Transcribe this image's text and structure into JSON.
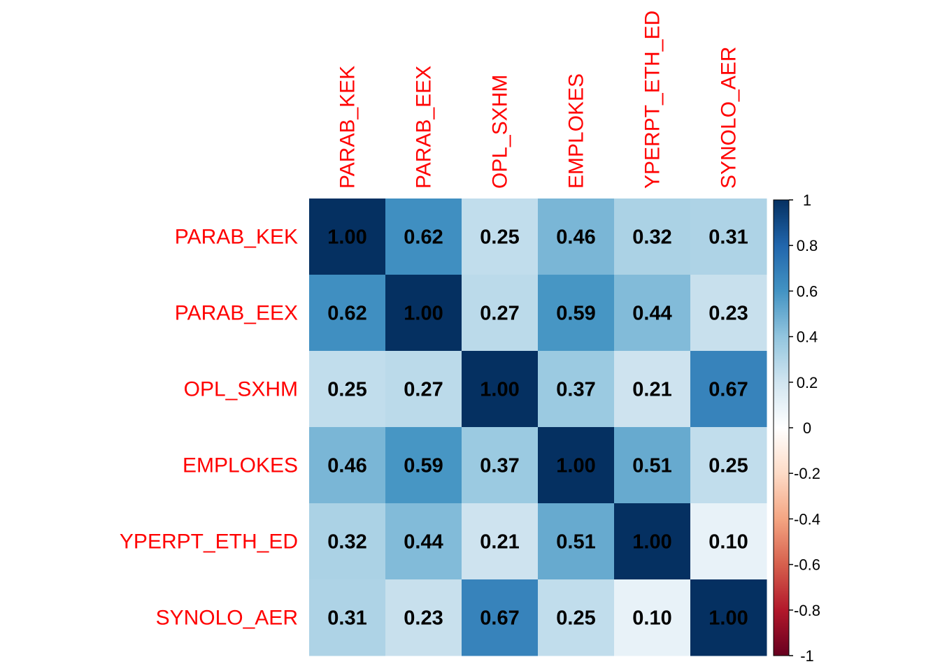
{
  "chart_data": {
    "type": "heatmap",
    "title": "",
    "variables": [
      "PARAB_KEK",
      "PARAB_EEX",
      "OPL_SXHM",
      "EMPLOKES",
      "YPERPT_ETH_ED",
      "SYNOLO_AER"
    ],
    "row_labels": [
      "PARAB_KEK",
      "PARAB_EEX",
      "OPL_SXHM",
      "EMPLOKES",
      "YPERPT_ETH_ED",
      "SYNOLO_AER"
    ],
    "col_labels": [
      "PARAB_KEK",
      "PARAB_EEX",
      "OPL_SXHM",
      "EMPLOKES",
      "YPERPT_ETH_ED",
      "SYNOLO_AER"
    ],
    "values": [
      [
        1.0,
        0.62,
        0.25,
        0.46,
        0.32,
        0.31
      ],
      [
        0.62,
        1.0,
        0.27,
        0.59,
        0.44,
        0.23
      ],
      [
        0.25,
        0.27,
        1.0,
        0.37,
        0.21,
        0.67
      ],
      [
        0.46,
        0.59,
        0.37,
        1.0,
        0.51,
        0.25
      ],
      [
        0.32,
        0.44,
        0.21,
        0.51,
        1.0,
        0.1
      ],
      [
        0.31,
        0.23,
        0.67,
        0.25,
        0.1,
        1.0
      ]
    ],
    "value_labels": [
      [
        "1.00",
        "0.62",
        "0.25",
        "0.46",
        "0.32",
        "0.31"
      ],
      [
        "0.62",
        "1.00",
        "0.27",
        "0.59",
        "0.44",
        "0.23"
      ],
      [
        "0.25",
        "0.27",
        "1.00",
        "0.37",
        "0.21",
        "0.67"
      ],
      [
        "0.46",
        "0.59",
        "0.37",
        "1.00",
        "0.51",
        "0.25"
      ],
      [
        "0.32",
        "0.44",
        "0.21",
        "0.51",
        "1.00",
        "0.10"
      ],
      [
        "0.31",
        "0.23",
        "0.67",
        "0.25",
        "0.10",
        "1.00"
      ]
    ],
    "colorbar": {
      "range": [
        -1,
        1
      ],
      "ticks": [
        1,
        0.8,
        0.6,
        0.4,
        0.2,
        0,
        -0.2,
        -0.4,
        -0.6,
        -0.8,
        -1
      ],
      "tick_labels": [
        "1",
        "0.8",
        "0.6",
        "0.4",
        "0.2",
        "0",
        "-0.2",
        "-0.4",
        "-0.6",
        "-0.8",
        "-1"
      ],
      "stops": [
        {
          "v": -1.0,
          "color": "#67001F"
        },
        {
          "v": -0.8,
          "color": "#B2182B"
        },
        {
          "v": -0.6,
          "color": "#D6604D"
        },
        {
          "v": -0.4,
          "color": "#F4A582"
        },
        {
          "v": -0.2,
          "color": "#FDDBC7"
        },
        {
          "v": 0.0,
          "color": "#FFFFFF"
        },
        {
          "v": 0.2,
          "color": "#D1E5F0"
        },
        {
          "v": 0.4,
          "color": "#92C5DE"
        },
        {
          "v": 0.6,
          "color": "#4393C3"
        },
        {
          "v": 0.8,
          "color": "#2166AC"
        },
        {
          "v": 1.0,
          "color": "#053061"
        }
      ]
    },
    "label_color": "#FF0000",
    "value_text_color": "#000000"
  }
}
